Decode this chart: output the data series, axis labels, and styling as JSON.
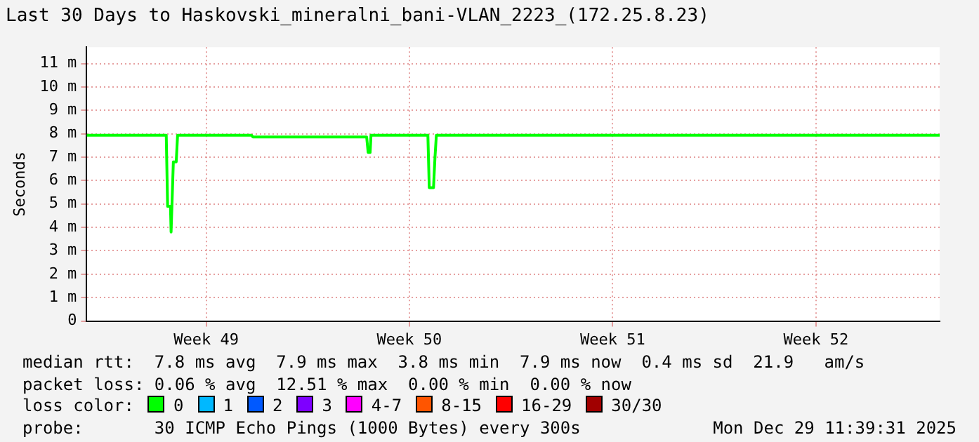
{
  "chart_data": {
    "type": "line",
    "title": "Last 30 Days to Haskovski_mineralni_bani-VLAN_2223_(172.25.8.23)",
    "ylabel": "Seconds",
    "xlim": [
      "2025-11-29T11:39",
      "2025-12-29T11:39"
    ],
    "xticks": [
      {
        "value": "2025-12-03T16:30",
        "label": "Week 49"
      },
      {
        "value": "2025-12-10T20:00",
        "label": "Week 50"
      },
      {
        "value": "2025-12-17T23:40",
        "label": "Week 51"
      },
      {
        "value": "2025-12-25T03:15",
        "label": "Week 52"
      }
    ],
    "ylim": [
      0,
      11.7
    ],
    "yticks": [
      {
        "value": 0,
        "label": "0"
      },
      {
        "value": 1,
        "label": "1 m"
      },
      {
        "value": 2,
        "label": "2 m"
      },
      {
        "value": 3,
        "label": "3 m"
      },
      {
        "value": 4,
        "label": "4 m"
      },
      {
        "value": 5,
        "label": "5 m"
      },
      {
        "value": 6,
        "label": "6 m"
      },
      {
        "value": 7,
        "label": "7 m"
      },
      {
        "value": 8,
        "label": "8 m"
      },
      {
        "value": 9,
        "label": "9 m"
      },
      {
        "value": 10,
        "label": "10 m"
      },
      {
        "value": 11,
        "label": "11 m"
      }
    ],
    "grid": true,
    "legend": "bottom",
    "legend_title": "loss color:",
    "marker": "none",
    "line_style": "solid",
    "x": [
      "2025-11-29T11:39",
      "2025-12-02T06:50",
      "2025-12-02T08:00",
      "2025-12-02T10:25",
      "2025-12-02T10:55",
      "2025-12-02T12:50",
      "2025-12-02T15:15",
      "2025-12-02T16:25",
      "2025-12-05T06:50",
      "2025-12-05T08:00",
      "2025-12-09T08:00",
      "2025-12-09T09:15",
      "2025-12-09T10:55",
      "2025-12-09T11:40",
      "2025-12-11T11:40",
      "2025-12-11T12:50",
      "2025-12-11T16:25",
      "2025-12-11T17:40",
      "2025-12-11T18:50",
      "2025-12-29T11:39"
    ],
    "series": [
      {
        "name": "0",
        "color": "#00ff00",
        "values": [
          7.94,
          7.94,
          4.9,
          4.9,
          3.8,
          6.8,
          6.8,
          7.94,
          7.94,
          7.86,
          7.86,
          7.2,
          7.2,
          7.94,
          7.94,
          5.7,
          5.7,
          7.0,
          7.94,
          7.94
        ]
      },
      {
        "name": "1",
        "color": "#00b8ff",
        "values": [
          null,
          null,
          null,
          null,
          null,
          null,
          null,
          null,
          null,
          null,
          null,
          null,
          null,
          null,
          null,
          null,
          null,
          null,
          null,
          null
        ]
      },
      {
        "name": "2",
        "color": "#0059ff",
        "values": [
          null,
          null,
          null,
          null,
          null,
          null,
          null,
          null,
          null,
          null,
          null,
          null,
          null,
          null,
          null,
          null,
          null,
          null,
          null,
          null
        ]
      },
      {
        "name": "3",
        "color": "#7e00ff",
        "values": [
          null,
          null,
          null,
          null,
          null,
          null,
          null,
          null,
          null,
          null,
          null,
          null,
          null,
          null,
          null,
          null,
          null,
          null,
          null,
          null
        ]
      },
      {
        "name": "4-7",
        "color": "#ff00ff",
        "values": [
          null,
          null,
          null,
          null,
          null,
          null,
          null,
          null,
          null,
          null,
          null,
          null,
          null,
          null,
          null,
          null,
          null,
          null,
          null,
          null
        ]
      },
      {
        "name": "8-15",
        "color": "#ff5500",
        "values": [
          null,
          null,
          null,
          null,
          null,
          null,
          null,
          null,
          null,
          null,
          null,
          null,
          null,
          null,
          null,
          null,
          null,
          null,
          null,
          null
        ]
      },
      {
        "name": "16-29",
        "color": "#ff0000",
        "values": [
          null,
          null,
          null,
          null,
          null,
          null,
          null,
          null,
          null,
          null,
          null,
          null,
          null,
          null,
          null,
          null,
          null,
          null,
          null,
          null
        ]
      },
      {
        "name": "30/30",
        "color": "#a10000",
        "values": [
          null,
          null,
          null,
          null,
          null,
          null,
          null,
          null,
          null,
          null,
          null,
          null,
          null,
          null,
          null,
          null,
          null,
          null,
          null,
          null
        ]
      }
    ],
    "annotations": [
      "median rtt:  7.8 ms avg  7.9 ms max  3.8 ms min  7.9 ms now  0.4 ms sd  21.9   am/s",
      "packet loss: 0.06 % avg  12.51 % max  0.00 % min  0.00 % now",
      "probe:       30 ICMP Echo Pings (1000 Bytes) every 300s",
      "Mon Dec 29 11:39:31 2025"
    ]
  }
}
